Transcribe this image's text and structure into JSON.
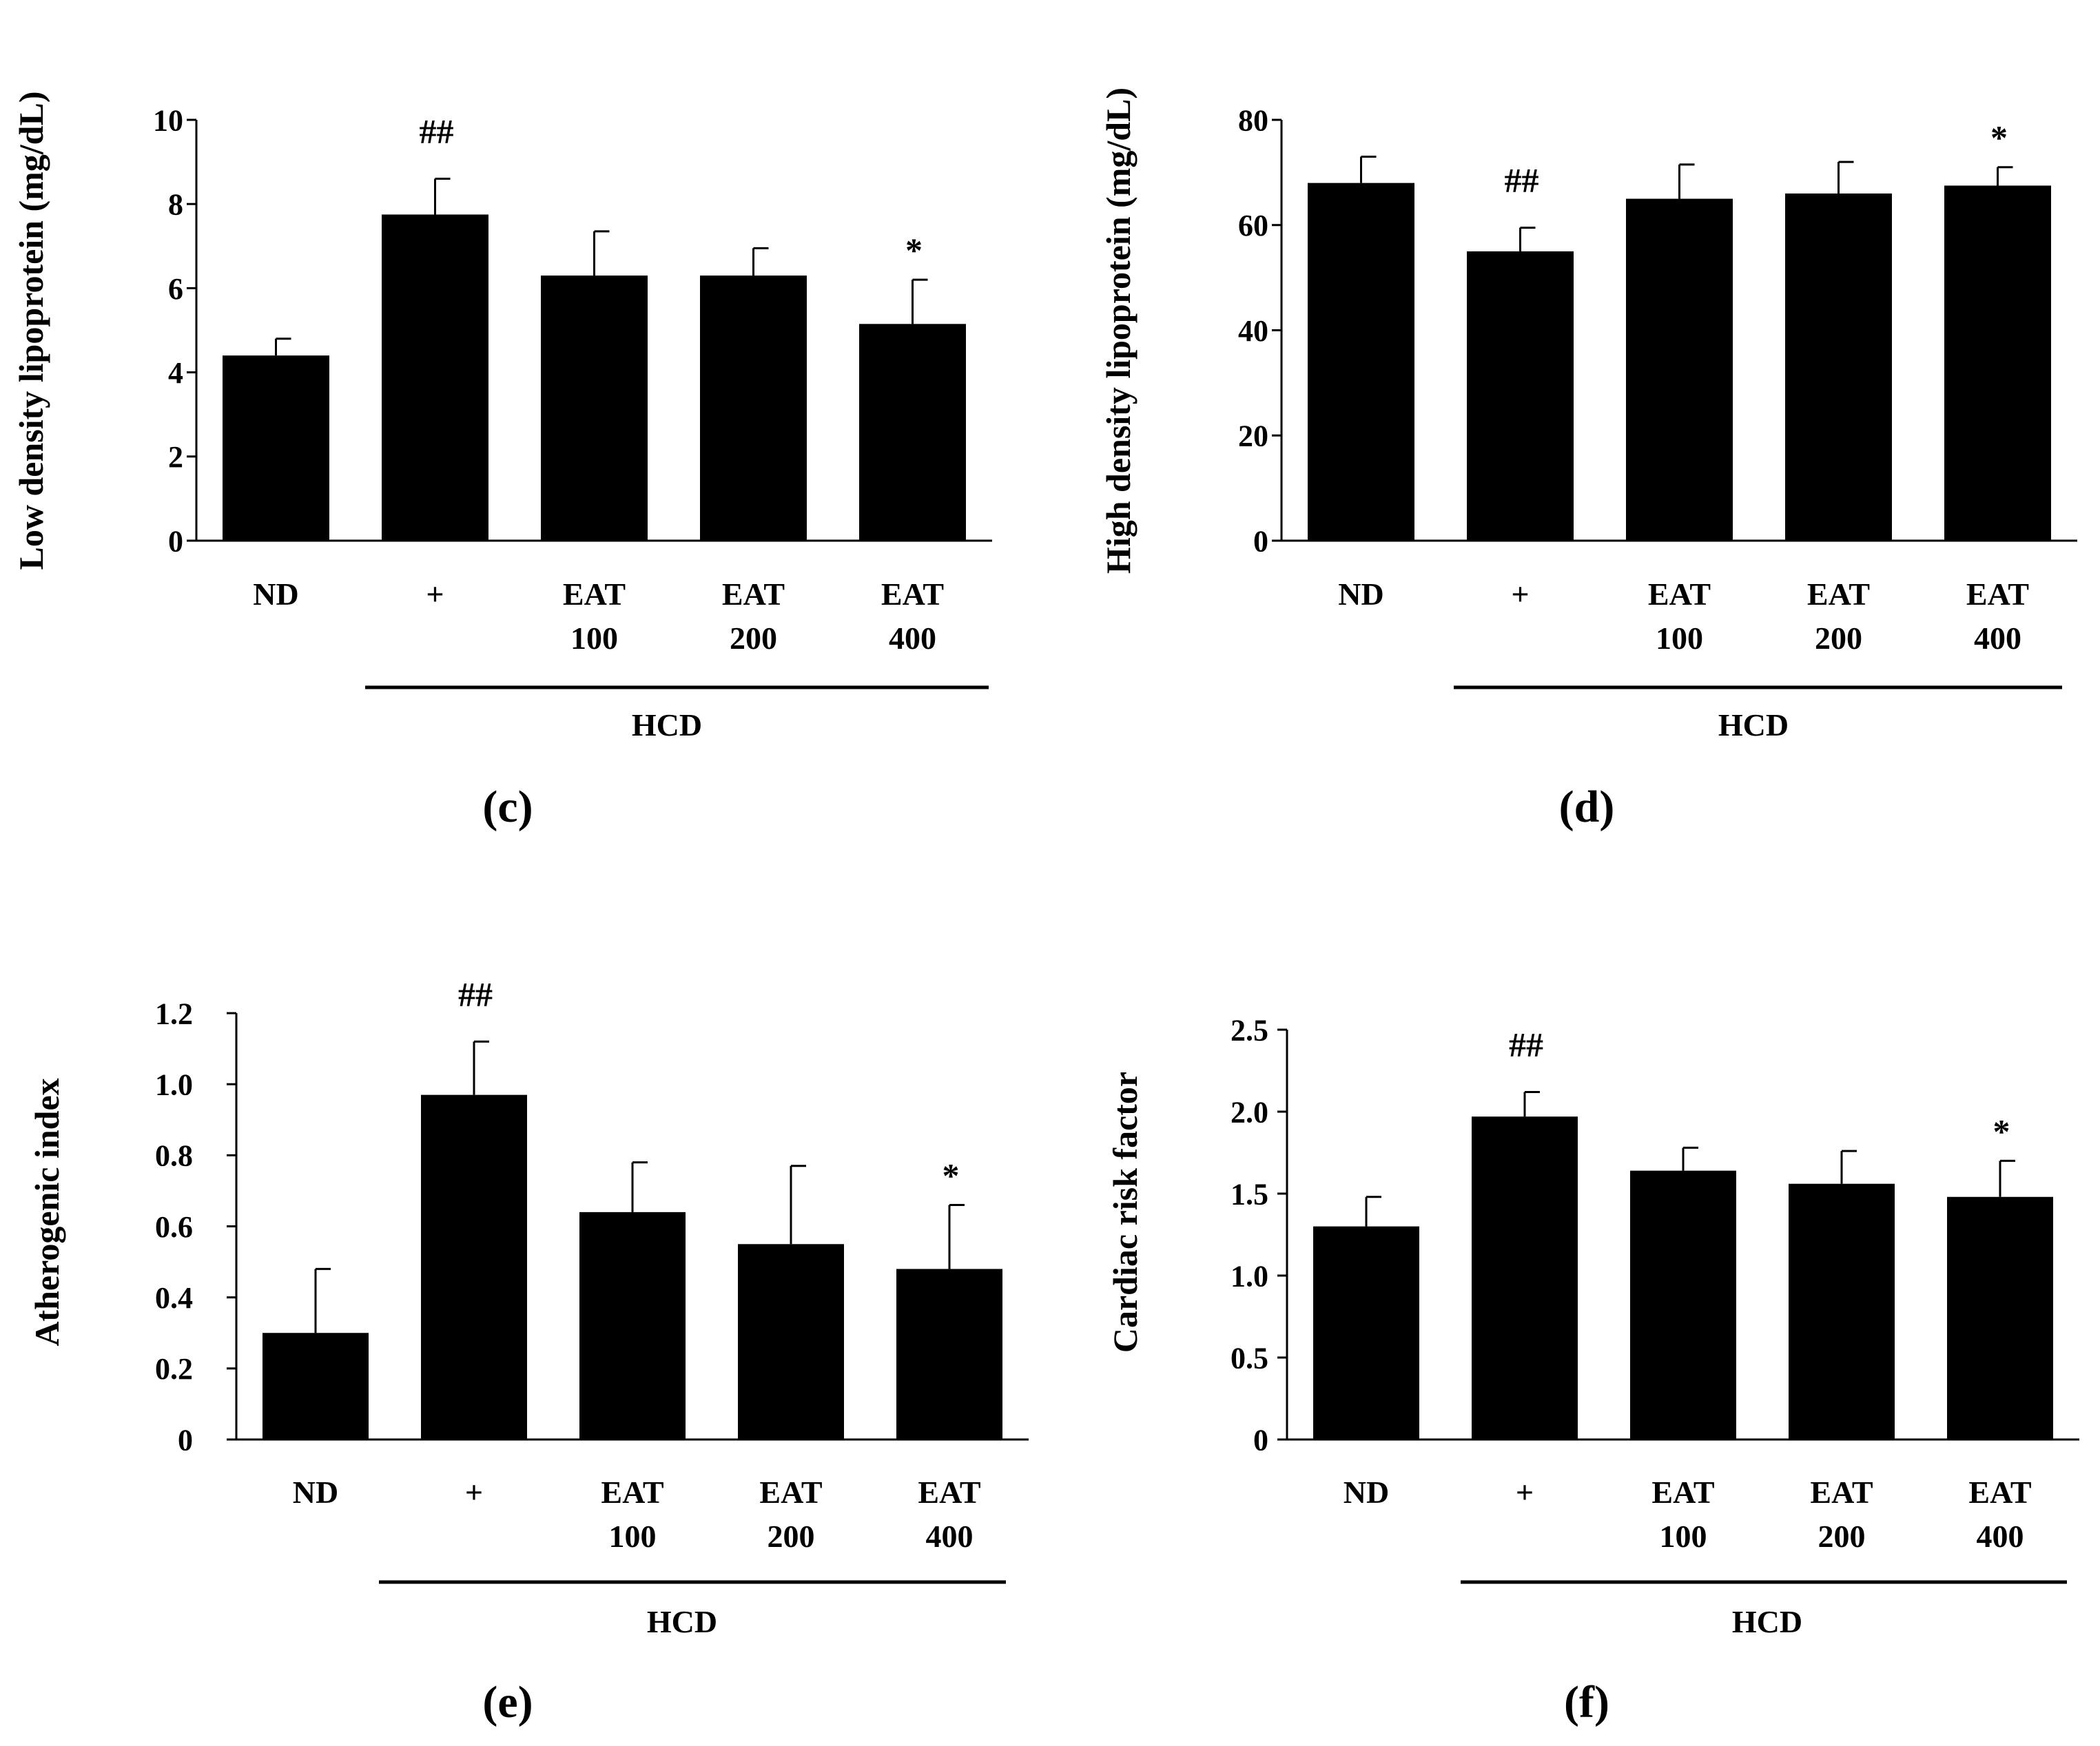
{
  "figure": {
    "background": "#ffffff",
    "bar_color": "#000000",
    "panels": [
      "c",
      "d",
      "e",
      "f"
    ]
  },
  "chart_data": [
    {
      "panel": "c",
      "type": "bar",
      "ylabel": "Low density lipoprotein  (mg/dL)",
      "ylim": [
        0,
        10
      ],
      "yticks": [
        0,
        2,
        4,
        6,
        8,
        10
      ],
      "ytick_labels": [
        "0",
        "2",
        "4",
        "6",
        "8",
        "10"
      ],
      "categories": [
        [
          "ND"
        ],
        [
          "+"
        ],
        [
          "EAT",
          "100"
        ],
        [
          "EAT",
          "200"
        ],
        [
          "EAT",
          "400"
        ]
      ],
      "values": [
        4.4,
        7.75,
        6.3,
        6.3,
        5.15
      ],
      "errors": [
        0.4,
        0.85,
        1.05,
        0.65,
        1.05
      ],
      "annotations": [
        "",
        "##",
        "",
        "",
        "*"
      ],
      "group_label": "HCD",
      "group_span": [
        1,
        4
      ]
    },
    {
      "panel": "d",
      "type": "bar",
      "ylabel": "High density lipoprotein  (mg/dL)",
      "ylim": [
        0,
        80
      ],
      "yticks": [
        0,
        20,
        40,
        60,
        80
      ],
      "ytick_labels": [
        "0",
        "20",
        "40",
        "60",
        "80"
      ],
      "categories": [
        [
          "ND"
        ],
        [
          "+"
        ],
        [
          "EAT",
          "100"
        ],
        [
          "EAT",
          "200"
        ],
        [
          "EAT",
          "400"
        ]
      ],
      "values": [
        68,
        55,
        65,
        66,
        67.5
      ],
      "errors": [
        5,
        4.5,
        6.5,
        6,
        3.5
      ],
      "annotations": [
        "",
        "##",
        "",
        "",
        "*"
      ],
      "group_label": "HCD",
      "group_span": [
        1,
        4
      ]
    },
    {
      "panel": "e",
      "type": "bar",
      "ylabel": "Atherogenic index",
      "ylim": [
        0,
        1.2
      ],
      "yticks": [
        0,
        0.2,
        0.4,
        0.6,
        0.8,
        1.0,
        1.2
      ],
      "ytick_labels": [
        "0",
        "0.2",
        "0.4",
        "0.6",
        "0.8",
        "1.0",
        "1.2"
      ],
      "categories": [
        [
          "ND"
        ],
        [
          "+"
        ],
        [
          "EAT",
          "100"
        ],
        [
          "EAT",
          "200"
        ],
        [
          "EAT",
          "400"
        ]
      ],
      "values": [
        0.3,
        0.97,
        0.64,
        0.55,
        0.48
      ],
      "errors": [
        0.18,
        0.15,
        0.14,
        0.22,
        0.18
      ],
      "annotations": [
        "",
        "##",
        "",
        "",
        "*"
      ],
      "group_label": "HCD",
      "group_span": [
        1,
        4
      ]
    },
    {
      "panel": "f",
      "type": "bar",
      "ylabel": "Cardiac  risk factor",
      "ylim": [
        0,
        2.5
      ],
      "yticks": [
        0,
        0.5,
        1.0,
        1.5,
        2.0,
        2.5
      ],
      "ytick_labels": [
        "0",
        "0.5",
        "1.0",
        "1.5",
        "2.0",
        "2.5"
      ],
      "categories": [
        [
          "ND"
        ],
        [
          "+"
        ],
        [
          "EAT",
          "100"
        ],
        [
          "EAT",
          "200"
        ],
        [
          "EAT",
          "400"
        ]
      ],
      "values": [
        1.3,
        1.97,
        1.64,
        1.56,
        1.48
      ],
      "errors": [
        0.18,
        0.15,
        0.14,
        0.2,
        0.22
      ],
      "annotations": [
        "",
        "##",
        "",
        "",
        "*"
      ],
      "group_label": "HCD",
      "group_span": [
        1,
        4
      ]
    }
  ]
}
